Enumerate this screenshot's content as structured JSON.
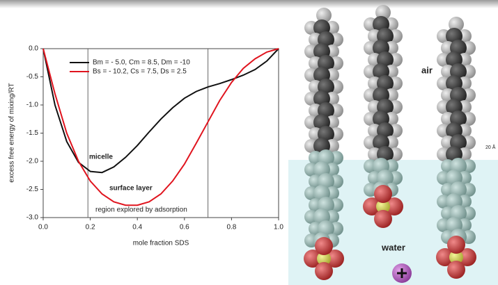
{
  "chart_data": {
    "type": "line",
    "x_label": "mole fraction SDS",
    "y_label": "excess free energy of mixing/RT",
    "x": [
      0,
      0.05,
      0.1,
      0.15,
      0.2,
      0.25,
      0.3,
      0.35,
      0.4,
      0.45,
      0.5,
      0.55,
      0.6,
      0.65,
      0.7,
      0.75,
      0.8,
      0.85,
      0.9,
      0.95,
      1.0
    ],
    "series": [
      {
        "name": "Bm = - 5.0, Cm = 8.5, Dm = -10",
        "color": "#111111",
        "values": [
          0,
          -1.0,
          -1.65,
          -2.02,
          -2.18,
          -2.2,
          -2.1,
          -1.93,
          -1.72,
          -1.48,
          -1.25,
          -1.05,
          -0.88,
          -0.76,
          -0.68,
          -0.62,
          -0.55,
          -0.47,
          -0.37,
          -0.22,
          0
        ]
      },
      {
        "name": "Bs = - 10.2, Cs = 7.5, Ds = 2.5",
        "color": "#e0141e",
        "values": [
          0,
          -0.8,
          -1.5,
          -2.0,
          -2.35,
          -2.58,
          -2.72,
          -2.78,
          -2.78,
          -2.72,
          -2.58,
          -2.35,
          -2.05,
          -1.68,
          -1.3,
          -0.92,
          -0.6,
          -0.35,
          -0.18,
          -0.06,
          0
        ]
      }
    ],
    "xlim": [
      0,
      1.0
    ],
    "ylim": [
      -3.0,
      0
    ],
    "xticks": [
      {
        "value": 0,
        "label": "0.0"
      },
      0.2,
      0.4,
      0.6,
      0.8,
      {
        "value": 1,
        "label": "1.0"
      }
    ],
    "yticks": [
      {
        "value": 0,
        "label": "0.0"
      },
      -0.5,
      {
        "value": -1,
        "label": "-1.0"
      },
      -1.5,
      {
        "value": -2,
        "label": "-2.0"
      },
      -2.5,
      {
        "value": -3,
        "label": "-3.0"
      }
    ],
    "vlines": [
      0.19,
      0.7
    ],
    "annotations": [
      {
        "text": "micelle",
        "color": "#111111"
      },
      {
        "text": "surface layer",
        "color": "#e0141e"
      },
      {
        "text": "region explored by adsorption",
        "color": "#222222"
      }
    ]
  },
  "illustration": {
    "labels": [
      "air",
      "water",
      "20 Å"
    ]
  }
}
